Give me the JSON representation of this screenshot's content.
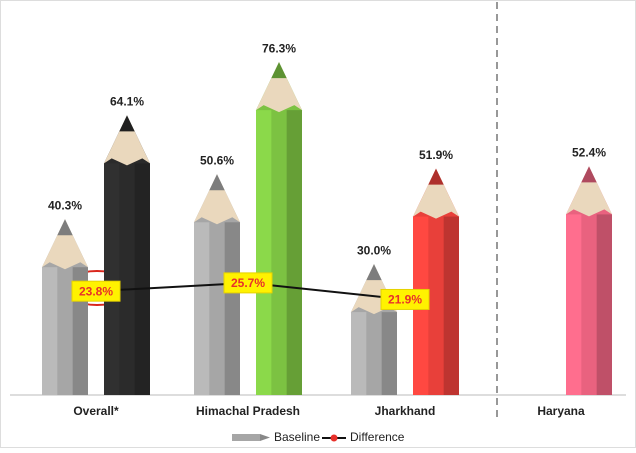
{
  "chart_data": {
    "type": "bar",
    "categories": [
      "Overall*",
      "Himachal Pradesh",
      "Jharkhand",
      "Haryana"
    ],
    "ylim": [
      0,
      80
    ],
    "series": [
      {
        "name": "Baseline",
        "color": "#a6a6a6",
        "values": [
          40.3,
          50.6,
          30.0,
          null
        ],
        "value_labels": [
          "40.3%",
          "50.6%",
          "30.0%",
          null
        ]
      },
      {
        "colors": [
          "#2b2b2b",
          "#7cc242",
          "#e8403a",
          "#e9627f"
        ],
        "values": [
          64.1,
          76.3,
          51.9,
          52.4
        ],
        "value_labels": [
          "64.1%",
          "76.3%",
          "51.9%",
          "52.4%"
        ]
      },
      {
        "name": "Difference",
        "type": "line",
        "color": "#e8302a",
        "values": [
          23.8,
          25.7,
          21.9,
          null
        ],
        "value_labels": [
          "23.8%",
          "25.7%",
          "21.9%",
          null
        ]
      }
    ]
  }
}
